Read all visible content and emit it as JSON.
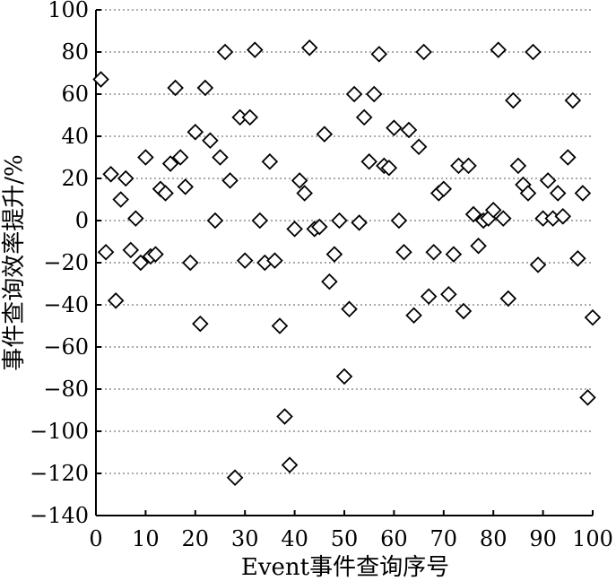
{
  "chart_data": {
    "type": "scatter",
    "xlabel": "Event事件查询序号",
    "ylabel": "事件查询效率提升/%",
    "xlim": [
      0,
      100
    ],
    "ylim": [
      -140,
      100
    ],
    "xticks": [
      0,
      10,
      20,
      30,
      40,
      50,
      60,
      70,
      80,
      90,
      100
    ],
    "yticks": [
      100,
      80,
      60,
      40,
      20,
      0,
      -20,
      -40,
      -60,
      -80,
      -100,
      -120,
      -140
    ],
    "grid": "horizontal-dotted",
    "marker": "diamond",
    "series": [
      {
        "x": [
          1,
          2,
          3,
          4,
          5,
          6,
          7,
          8,
          9,
          10,
          11,
          12,
          13,
          14,
          15,
          16,
          17,
          18,
          19,
          20,
          21,
          22,
          23,
          24,
          25,
          26,
          27,
          28,
          29,
          30,
          31,
          32,
          33,
          34,
          35,
          36,
          37,
          38,
          39,
          40,
          41,
          42,
          43,
          44,
          45,
          46,
          47,
          48,
          49,
          50,
          51,
          52,
          53,
          54,
          55,
          56,
          57,
          58,
          59,
          60,
          61,
          62,
          63,
          64,
          65,
          66,
          67,
          68,
          69,
          70,
          71,
          72,
          73,
          74,
          75,
          76,
          77,
          78,
          79,
          80,
          81,
          82,
          83,
          84,
          85,
          86,
          87,
          88,
          89,
          90,
          91,
          92,
          93,
          94,
          95,
          96,
          97,
          98,
          99,
          100
        ],
        "y": [
          67,
          -15,
          22,
          -38,
          10,
          20,
          -14,
          1,
          -20,
          30,
          -17,
          -16,
          15,
          13,
          27,
          63,
          30,
          16,
          -20,
          42,
          -49,
          63,
          38,
          0,
          30,
          80,
          19,
          -122,
          49,
          -19,
          49,
          81,
          0,
          -20,
          28,
          -19,
          -50,
          -93,
          -116,
          -4,
          19,
          13,
          82,
          -4,
          -3,
          41,
          -29,
          -16,
          0,
          -74,
          -42,
          60,
          -1,
          49,
          28,
          60,
          79,
          26,
          25,
          44,
          0,
          -15,
          43,
          -45,
          35,
          80,
          -36,
          -15,
          13,
          15,
          -35,
          -16,
          26,
          -43,
          26,
          3,
          -12,
          0,
          1,
          5,
          81,
          1,
          -37,
          57,
          26,
          17,
          13,
          80,
          -21,
          1,
          19,
          1,
          13,
          2,
          30,
          57,
          -18,
          13,
          -84,
          -46
        ]
      }
    ]
  }
}
